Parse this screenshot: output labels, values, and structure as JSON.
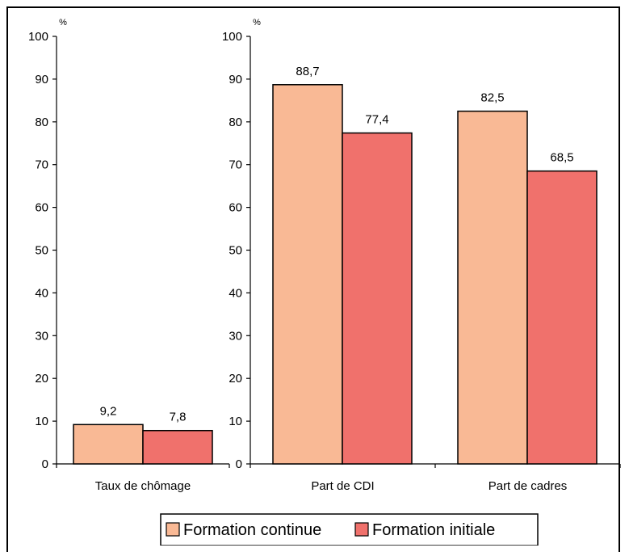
{
  "chart_data": [
    {
      "type": "bar",
      "unit": "%",
      "ylim": [
        0,
        100
      ],
      "yticks": [
        0,
        10,
        20,
        30,
        40,
        50,
        60,
        70,
        80,
        90,
        100
      ],
      "categories": [
        "Taux de chômage"
      ],
      "series": [
        {
          "name": "Formation continue",
          "values": [
            9.2
          ],
          "labels": [
            "9,2"
          ],
          "color": "#F9B995"
        },
        {
          "name": "Formation initiale",
          "values": [
            7.8
          ],
          "labels": [
            "7,8"
          ],
          "color": "#F0716C"
        }
      ]
    },
    {
      "type": "bar",
      "unit": "%",
      "ylim": [
        0,
        100
      ],
      "yticks": [
        0,
        10,
        20,
        30,
        40,
        50,
        60,
        70,
        80,
        90,
        100
      ],
      "categories": [
        "Part de CDI",
        "Part de cadres"
      ],
      "series": [
        {
          "name": "Formation continue",
          "values": [
            88.7,
            82.5
          ],
          "labels": [
            "88,7",
            "82,5"
          ],
          "color": "#F9B995"
        },
        {
          "name": "Formation initiale",
          "values": [
            77.4,
            68.5
          ],
          "labels": [
            "77,4",
            "68,5"
          ],
          "color": "#F0716C"
        }
      ]
    }
  ],
  "legend": {
    "placement": "bottom",
    "items": [
      {
        "label": "Formation continue",
        "color": "#F9B995"
      },
      {
        "label": "Formation initiale",
        "color": "#F0716C"
      }
    ]
  }
}
